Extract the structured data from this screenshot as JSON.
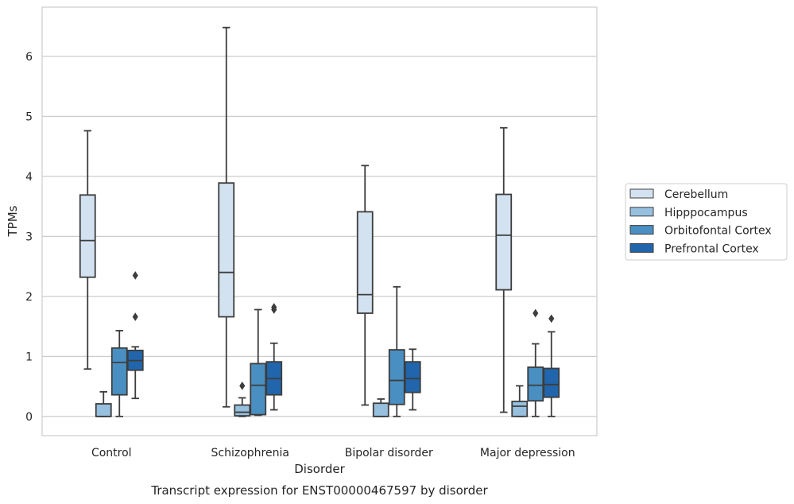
{
  "chart_data": {
    "type": "boxplot",
    "xlabel": "Disorder",
    "ylabel": "TPMs",
    "caption": "Transcript expression for ENST00000467597 by disorder",
    "ylim": [
      -0.32,
      6.82
    ],
    "yticks": [
      0,
      1,
      2,
      3,
      4,
      5,
      6
    ],
    "grid": "horizontal",
    "legend_position": "right",
    "categories": [
      "Control",
      "Schizophrenia",
      "Bipolar disorder",
      "Major depression"
    ],
    "series": [
      {
        "name": "Cerebellum",
        "color": "#d3e2f1",
        "boxes": [
          {
            "whisker_low": 0.79,
            "q1": 2.32,
            "median": 2.93,
            "q3": 3.69,
            "whisker_high": 4.76,
            "outliers": []
          },
          {
            "whisker_low": 0.16,
            "q1": 1.66,
            "median": 2.4,
            "q3": 3.89,
            "whisker_high": 6.48,
            "outliers": []
          },
          {
            "whisker_low": 0.19,
            "q1": 1.72,
            "median": 2.03,
            "q3": 3.41,
            "whisker_high": 4.18,
            "outliers": []
          },
          {
            "whisker_low": 0.07,
            "q1": 2.11,
            "median": 3.02,
            "q3": 3.7,
            "whisker_high": 4.81,
            "outliers": []
          }
        ]
      },
      {
        "name": "Hipppocampus",
        "color": "#97c0de",
        "boxes": [
          {
            "whisker_low": 0.0,
            "q1": 0.0,
            "median": 0.0,
            "q3": 0.21,
            "whisker_high": 0.41,
            "outliers": []
          },
          {
            "whisker_low": 0.0,
            "q1": 0.01,
            "median": 0.07,
            "q3": 0.19,
            "whisker_high": 0.31,
            "outliers": [
              0.51
            ]
          },
          {
            "whisker_low": 0.0,
            "q1": 0.0,
            "median": 0.0,
            "q3": 0.22,
            "whisker_high": 0.29,
            "outliers": []
          },
          {
            "whisker_low": 0.0,
            "q1": 0.0,
            "median": 0.17,
            "q3": 0.25,
            "whisker_high": 0.51,
            "outliers": []
          }
        ]
      },
      {
        "name": "Orbitofontal Cortex",
        "color": "#4a8fc1",
        "boxes": [
          {
            "whisker_low": 0.0,
            "q1": 0.36,
            "median": 0.9,
            "q3": 1.14,
            "whisker_high": 1.43,
            "outliers": []
          },
          {
            "whisker_low": 0.02,
            "q1": 0.03,
            "median": 0.52,
            "q3": 0.88,
            "whisker_high": 1.78,
            "outliers": []
          },
          {
            "whisker_low": 0.0,
            "q1": 0.2,
            "median": 0.6,
            "q3": 1.11,
            "whisker_high": 2.16,
            "outliers": []
          },
          {
            "whisker_low": 0.0,
            "q1": 0.26,
            "median": 0.52,
            "q3": 0.82,
            "whisker_high": 1.21,
            "outliers": [
              1.72
            ]
          }
        ]
      },
      {
        "name": "Prefrontal Cortex",
        "color": "#2166ac",
        "boxes": [
          {
            "whisker_low": 0.3,
            "q1": 0.77,
            "median": 0.93,
            "q3": 1.1,
            "whisker_high": 1.16,
            "outliers": [
              1.66,
              2.35
            ]
          },
          {
            "whisker_low": 0.11,
            "q1": 0.36,
            "median": 0.63,
            "q3": 0.91,
            "whisker_high": 1.22,
            "outliers": [
              1.78,
              1.82
            ]
          },
          {
            "whisker_low": 0.11,
            "q1": 0.4,
            "median": 0.63,
            "q3": 0.91,
            "whisker_high": 1.12,
            "outliers": []
          },
          {
            "whisker_low": 0.0,
            "q1": 0.32,
            "median": 0.53,
            "q3": 0.8,
            "whisker_high": 1.41,
            "outliers": [
              1.63
            ]
          }
        ]
      }
    ]
  }
}
